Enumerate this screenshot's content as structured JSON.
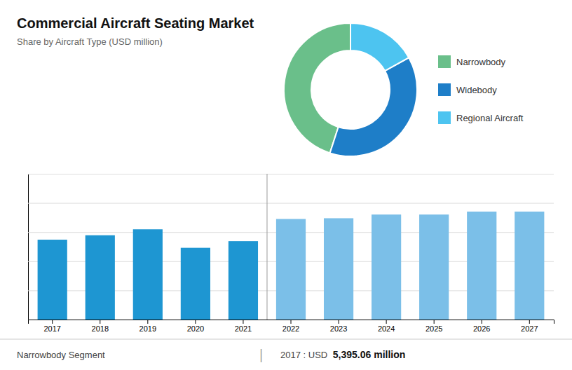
{
  "chart_data": [
    {
      "type": "pie",
      "title": "Commercial Aircraft Seating Market",
      "subtitle": "Share by Aircraft Type (USD million)",
      "categories": [
        "Narrowbody",
        "Widebody",
        "Regional Aircraft"
      ],
      "values": [
        45,
        38,
        17
      ],
      "colors": [
        "#6abf8a",
        "#1e7ec8",
        "#4dc4f0"
      ],
      "legend": "right"
    },
    {
      "type": "bar",
      "categories": [
        "2017",
        "2018",
        "2019",
        "2020",
        "2021",
        "2022",
        "2023",
        "2024",
        "2025",
        "2026",
        "2027"
      ],
      "values": [
        5.4,
        5.7,
        6.1,
        4.85,
        5.3,
        6.8,
        6.85,
        7.1,
        7.1,
        7.3,
        7.3
      ],
      "colors": [
        "#1e96d2",
        "#1e96d2",
        "#1e96d2",
        "#1e96d2",
        "#1e96d2",
        "#7bbfe8",
        "#7bbfe8",
        "#7bbfe8",
        "#7bbfe8",
        "#7bbfe8",
        "#7bbfe8"
      ],
      "ylim": [
        0,
        9.855
      ],
      "yticks": [
        0,
        1.971,
        3.942,
        5.913,
        7.884,
        9.855
      ],
      "grid": true,
      "tick_labels": "x",
      "annotations": [
        "Narrowbody Segment",
        "|",
        "2017 : USD ",
        "5,395.06 million"
      ]
    }
  ]
}
